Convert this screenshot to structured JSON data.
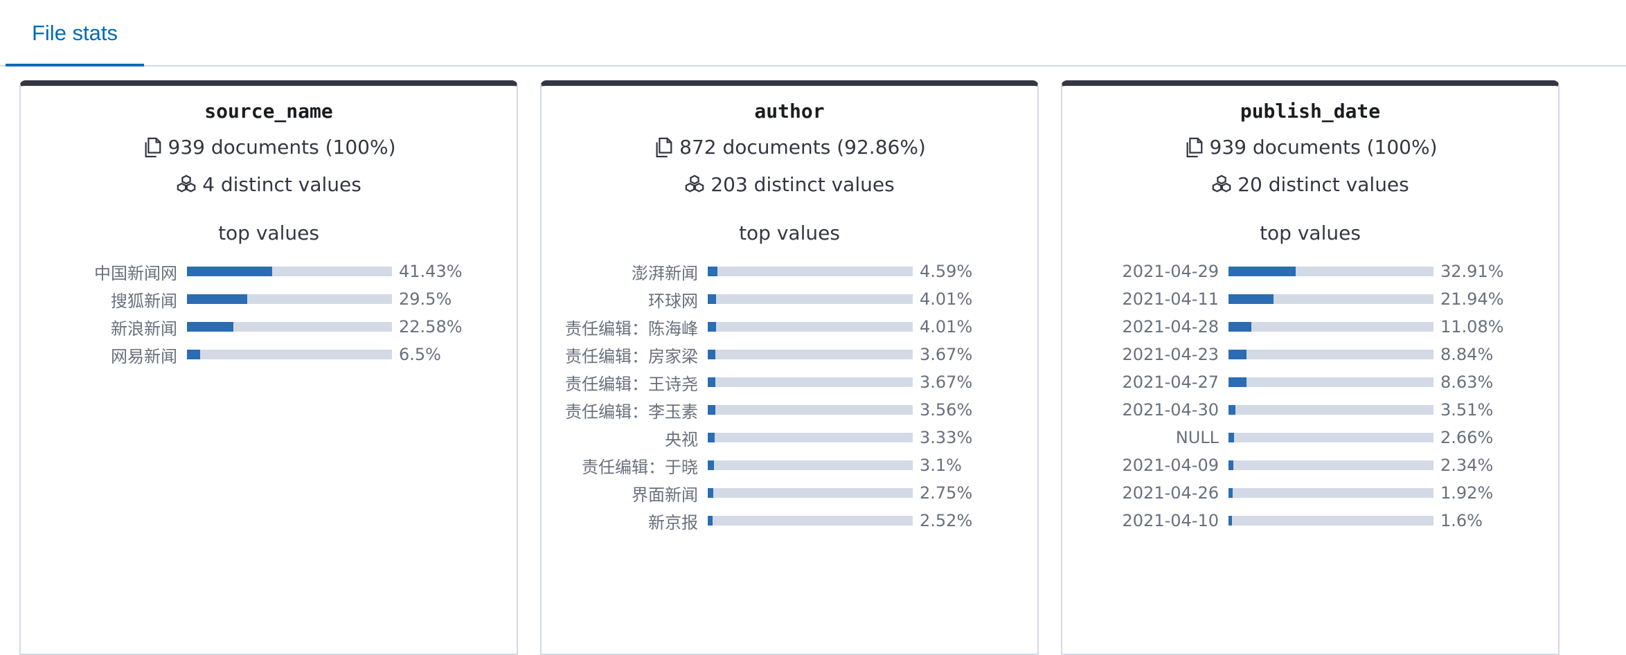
{
  "tabs": [
    {
      "label": "File stats"
    }
  ],
  "colors": {
    "accent": "#006bb8",
    "bar": "#2a6db3",
    "track": "#d3dae6",
    "card_top": "#343741"
  },
  "cards": [
    {
      "field": "source_name",
      "documents": "939 documents (100%)",
      "distinct": "4 distinct values",
      "top_values_title": "top values",
      "rows": [
        {
          "label": "中国新闻网",
          "pct_text": "41.43%",
          "pct": 41.43
        },
        {
          "label": "搜狐新闻",
          "pct_text": "29.5%",
          "pct": 29.5
        },
        {
          "label": "新浪新闻",
          "pct_text": "22.58%",
          "pct": 22.58
        },
        {
          "label": "网易新闻",
          "pct_text": "6.5%",
          "pct": 6.5
        }
      ]
    },
    {
      "field": "author",
      "documents": "872 documents (92.86%)",
      "distinct": "203 distinct values",
      "top_values_title": "top values",
      "rows": [
        {
          "label": "澎湃新闻",
          "pct_text": "4.59%",
          "pct": 4.59
        },
        {
          "label": "环球网",
          "pct_text": "4.01%",
          "pct": 4.01
        },
        {
          "label": "责任编辑：陈海峰",
          "pct_text": "4.01%",
          "pct": 4.01
        },
        {
          "label": "责任编辑：房家梁",
          "pct_text": "3.67%",
          "pct": 3.67
        },
        {
          "label": "责任编辑：王诗尧",
          "pct_text": "3.67%",
          "pct": 3.67
        },
        {
          "label": "责任编辑：李玉素",
          "pct_text": "3.56%",
          "pct": 3.56
        },
        {
          "label": "央视",
          "pct_text": "3.33%",
          "pct": 3.33
        },
        {
          "label": "责任编辑：于晓",
          "pct_text": "3.1%",
          "pct": 3.1
        },
        {
          "label": "界面新闻",
          "pct_text": "2.75%",
          "pct": 2.75
        },
        {
          "label": "新京报",
          "pct_text": "2.52%",
          "pct": 2.52
        }
      ]
    },
    {
      "field": "publish_date",
      "documents": "939 documents (100%)",
      "distinct": "20 distinct values",
      "top_values_title": "top values",
      "rows": [
        {
          "label": "2021-04-29",
          "pct_text": "32.91%",
          "pct": 32.91
        },
        {
          "label": "2021-04-11",
          "pct_text": "21.94%",
          "pct": 21.94
        },
        {
          "label": "2021-04-28",
          "pct_text": "11.08%",
          "pct": 11.08
        },
        {
          "label": "2021-04-23",
          "pct_text": "8.84%",
          "pct": 8.84
        },
        {
          "label": "2021-04-27",
          "pct_text": "8.63%",
          "pct": 8.63
        },
        {
          "label": "2021-04-30",
          "pct_text": "3.51%",
          "pct": 3.51
        },
        {
          "label": "NULL",
          "pct_text": "2.66%",
          "pct": 2.66
        },
        {
          "label": "2021-04-09",
          "pct_text": "2.34%",
          "pct": 2.34
        },
        {
          "label": "2021-04-26",
          "pct_text": "1.92%",
          "pct": 1.92
        },
        {
          "label": "2021-04-10",
          "pct_text": "1.6%",
          "pct": 1.6
        }
      ]
    }
  ]
}
